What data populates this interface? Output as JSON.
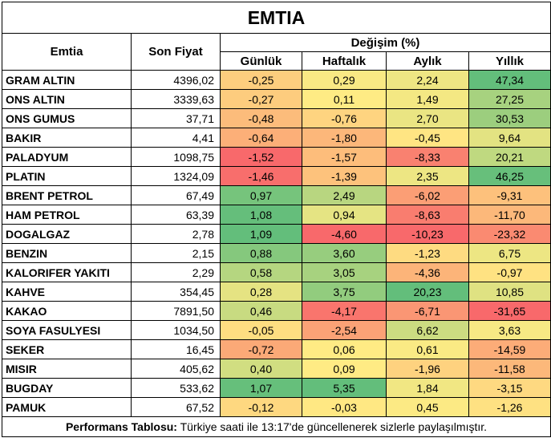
{
  "title": "EMTIA",
  "headers": {
    "commodity": "Emtia",
    "last_price": "Son Fiyat",
    "change_group": "Değişim (%)",
    "daily": "Günlük",
    "weekly": "Haftalık",
    "monthly": "Aylık",
    "yearly": "Yıllık"
  },
  "rows": [
    {
      "name": "GRAM ALTIN",
      "price": "4396,02",
      "d": "-0,25",
      "w": "0,29",
      "m": "2,24",
      "y": "47,34"
    },
    {
      "name": "ONS ALTIN",
      "price": "3339,63",
      "d": "-0,27",
      "w": "0,11",
      "m": "1,49",
      "y": "27,25"
    },
    {
      "name": "ONS GUMUS",
      "price": "37,71",
      "d": "-0,48",
      "w": "-0,76",
      "m": "2,70",
      "y": "30,53"
    },
    {
      "name": "BAKIR",
      "price": "4,41",
      "d": "-0,64",
      "w": "-1,80",
      "m": "-0,45",
      "y": "9,64"
    },
    {
      "name": "PALADYUM",
      "price": "1098,75",
      "d": "-1,52",
      "w": "-1,57",
      "m": "-8,33",
      "y": "20,21"
    },
    {
      "name": "PLATIN",
      "price": "1324,09",
      "d": "-1,46",
      "w": "-1,39",
      "m": "2,35",
      "y": "46,25"
    },
    {
      "name": "BRENT PETROL",
      "price": "67,49",
      "d": "0,97",
      "w": "2,49",
      "m": "-6,02",
      "y": "-9,31"
    },
    {
      "name": "HAM PETROL",
      "price": "63,39",
      "d": "1,08",
      "w": "0,94",
      "m": "-8,63",
      "y": "-11,70"
    },
    {
      "name": "DOGALGAZ",
      "price": "2,78",
      "d": "1,09",
      "w": "-4,60",
      "m": "-10,23",
      "y": "-23,32"
    },
    {
      "name": "BENZIN",
      "price": "2,15",
      "d": "0,88",
      "w": "3,60",
      "m": "-1,23",
      "y": "6,75"
    },
    {
      "name": "KALORIFER YAKITI",
      "price": "2,29",
      "d": "0,58",
      "w": "3,05",
      "m": "-4,36",
      "y": "-0,97"
    },
    {
      "name": "KAHVE",
      "price": "354,45",
      "d": "0,28",
      "w": "3,75",
      "m": "20,23",
      "y": "10,85"
    },
    {
      "name": "KAKAO",
      "price": "7891,50",
      "d": "0,46",
      "w": "-4,17",
      "m": "-6,71",
      "y": "-31,65"
    },
    {
      "name": "SOYA FASULYESI",
      "price": "1034,50",
      "d": "-0,05",
      "w": "-2,54",
      "m": "6,62",
      "y": "3,63"
    },
    {
      "name": "SEKER",
      "price": "16,45",
      "d": "-0,72",
      "w": "0,06",
      "m": "0,61",
      "y": "-14,59"
    },
    {
      "name": "MISIR",
      "price": "405,62",
      "d": "0,40",
      "w": "0,09",
      "m": "-1,96",
      "y": "-11,58"
    },
    {
      "name": "BUGDAY",
      "price": "533,62",
      "d": "1,07",
      "w": "5,35",
      "m": "1,84",
      "y": "-3,15"
    },
    {
      "name": "PAMUK",
      "price": "67,52",
      "d": "-0,12",
      "w": "-0,03",
      "m": "0,45",
      "y": "-1,26"
    }
  ],
  "footer": {
    "label": "Performans Tablosu:",
    "text": " Türkiye saati ile 13:17'de güncellenerek sizlerle paylaşılmıştır."
  },
  "colors": {
    "red": "#f8696b",
    "yellow": "#ffeb84",
    "green": "#63be7b"
  }
}
